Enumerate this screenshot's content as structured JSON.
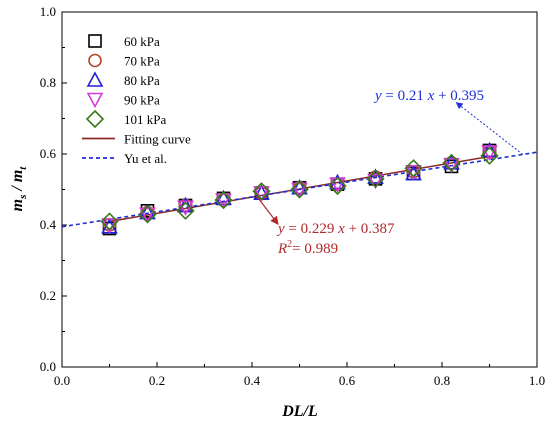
{
  "chart_data": {
    "type": "scatter",
    "xlabel": "DL/L",
    "ylabel": {
      "main": "m",
      "sub1": "s",
      "sep": " / ",
      "main2": "m",
      "sub2": "t"
    },
    "xlim": [
      0.0,
      1.0
    ],
    "ylim": [
      0.0,
      1.0
    ],
    "xticks": [
      "0.0",
      "0.2",
      "0.4",
      "0.6",
      "0.8",
      "1.0"
    ],
    "yticks": [
      "0.0",
      "0.2",
      "0.4",
      "0.6",
      "0.8",
      "1.0"
    ],
    "grid": false,
    "legend_position": "top-left",
    "series": [
      {
        "name": "60 kPa",
        "marker": "square",
        "color": "#000000",
        "x": [
          0.1,
          0.18,
          0.26,
          0.34,
          0.42,
          0.5,
          0.58,
          0.66,
          0.74,
          0.82,
          0.9
        ],
        "y": [
          0.39,
          0.44,
          0.455,
          0.475,
          0.49,
          0.505,
          0.515,
          0.53,
          0.545,
          0.565,
          0.61
        ]
      },
      {
        "name": "70 kPa",
        "marker": "circle",
        "color": "#b5452a",
        "x": [
          0.1,
          0.18,
          0.26,
          0.34,
          0.42,
          0.5,
          0.58,
          0.66,
          0.74,
          0.82,
          0.9
        ],
        "y": [
          0.4,
          0.435,
          0.455,
          0.47,
          0.49,
          0.505,
          0.515,
          0.535,
          0.55,
          0.575,
          0.605
        ]
      },
      {
        "name": "80 kPa",
        "marker": "triangle-up",
        "color": "#1f1fd6",
        "x": [
          0.1,
          0.18,
          0.26,
          0.34,
          0.42,
          0.5,
          0.58,
          0.66,
          0.74,
          0.82,
          0.9
        ],
        "y": [
          0.395,
          0.435,
          0.455,
          0.475,
          0.49,
          0.505,
          0.52,
          0.535,
          0.545,
          0.575,
          0.61
        ]
      },
      {
        "name": "90 kPa",
        "marker": "triangle-down",
        "color": "#d63ad6",
        "x": [
          0.1,
          0.18,
          0.26,
          0.34,
          0.42,
          0.5,
          0.58,
          0.66,
          0.74,
          0.82,
          0.9
        ],
        "y": [
          0.4,
          0.43,
          0.45,
          0.47,
          0.49,
          0.5,
          0.515,
          0.525,
          0.55,
          0.57,
          0.605
        ]
      },
      {
        "name": "101 kPa",
        "marker": "diamond",
        "color": "#3a7a1a",
        "x": [
          0.1,
          0.18,
          0.26,
          0.34,
          0.42,
          0.5,
          0.58,
          0.66,
          0.74,
          0.82,
          0.9
        ],
        "y": [
          0.41,
          0.43,
          0.44,
          0.47,
          0.495,
          0.5,
          0.51,
          0.53,
          0.56,
          0.575,
          0.595
        ]
      }
    ],
    "lines": [
      {
        "name": "Fitting curve",
        "style": "solid",
        "color": "#8b2a2a",
        "slope": 0.229,
        "intercept": 0.387,
        "x": [
          0.1,
          0.9
        ]
      },
      {
        "name": "Yu et al.",
        "style": "dashed",
        "color": "#1f2fd6",
        "slope": 0.21,
        "intercept": 0.395,
        "x": [
          0.0,
          1.0
        ]
      }
    ],
    "annotations": [
      {
        "text_prefix": "y",
        "text_eq": " = 0.21 ",
        "text_var": "x",
        "text_rest": " + 0.395",
        "color": "#1f2fd6"
      },
      {
        "text_prefix": "y",
        "text_eq": " = 0.229 ",
        "text_var": "x",
        "text_rest": " + 0.387",
        "color": "#b02a2a"
      },
      {
        "text_prefix": "R",
        "text_sup": "2",
        "text_rest": "= 0.989",
        "color": "#b02a2a"
      }
    ]
  }
}
